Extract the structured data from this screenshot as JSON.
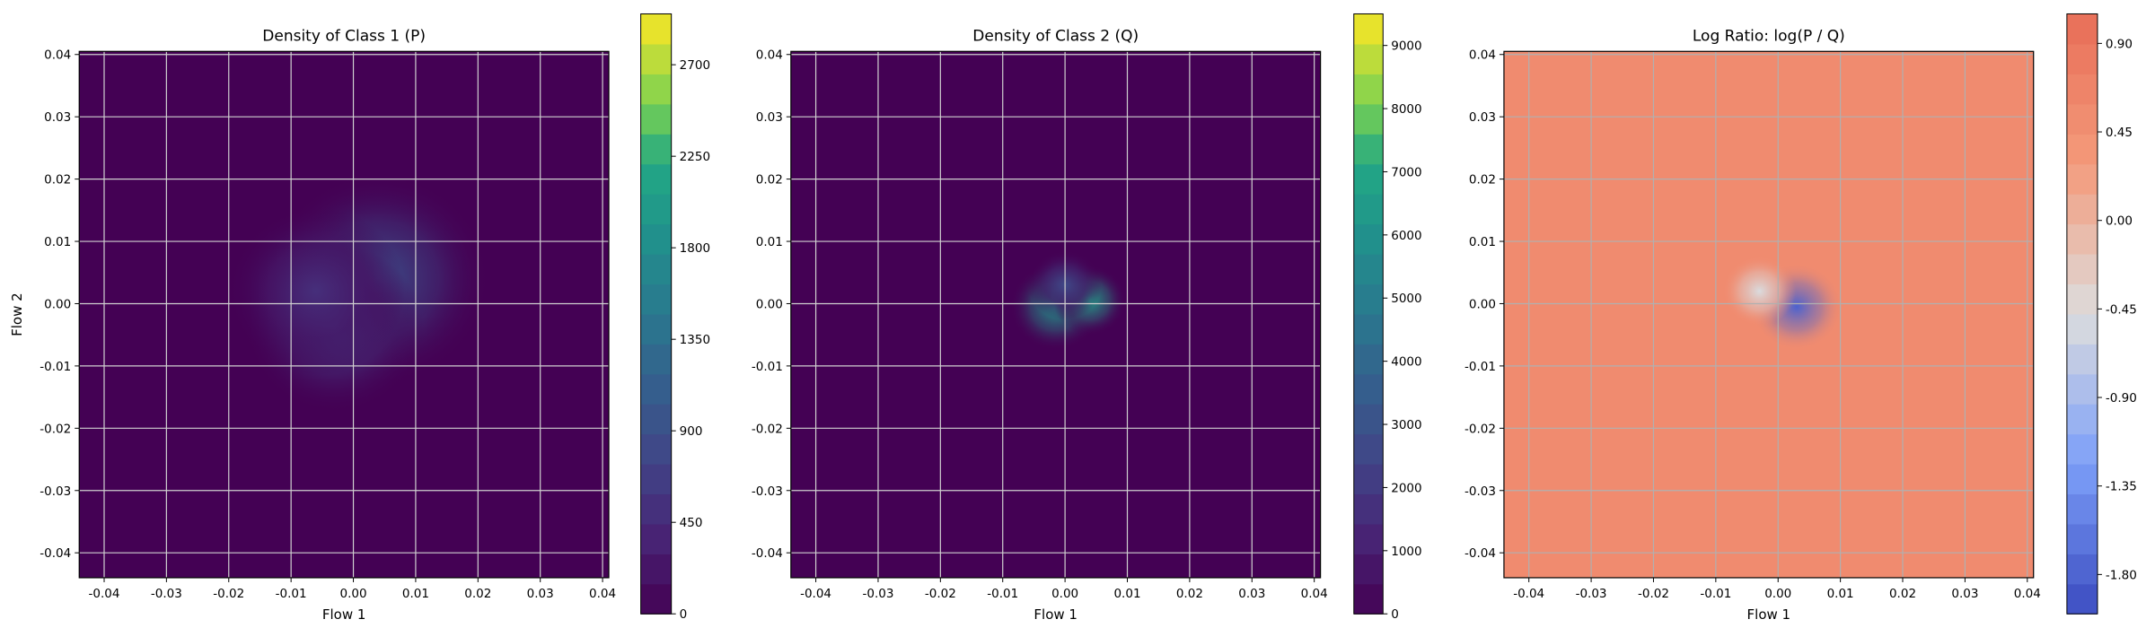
{
  "chart_data": [
    {
      "type": "heatmap",
      "title": "Density of Class 1 (P)",
      "xlabel": "Flow 1",
      "ylabel": "Flow 2",
      "xlim": [
        -0.044,
        0.041
      ],
      "ylim": [
        -0.044,
        0.0405
      ],
      "xticks": [
        "-0.04",
        "-0.03",
        "-0.02",
        "-0.01",
        "0.00",
        "0.01",
        "0.02",
        "0.03",
        "0.04"
      ],
      "yticks": [
        "-0.04",
        "-0.03",
        "-0.02",
        "-0.01",
        "0.00",
        "0.01",
        "0.02",
        "0.03",
        "0.04"
      ],
      "grid": true,
      "colormap": "viridis",
      "colorbar": {
        "min": 0,
        "max": 2950,
        "ticks": [
          "0",
          "450",
          "900",
          "1350",
          "1800",
          "2250",
          "2700"
        ]
      },
      "density_peaks": [
        {
          "x": 0.004,
          "y": 0.004,
          "value": 900
        },
        {
          "x": -0.003,
          "y": -0.004,
          "value": 650
        },
        {
          "x": -0.006,
          "y": 0.002,
          "value": 500
        }
      ]
    },
    {
      "type": "heatmap",
      "title": "Density of Class 2 (Q)",
      "xlabel": "Flow 1",
      "ylabel": "",
      "xlim": [
        -0.044,
        0.041
      ],
      "ylim": [
        -0.044,
        0.0405
      ],
      "xticks": [
        "-0.04",
        "-0.03",
        "-0.02",
        "-0.01",
        "0.00",
        "0.01",
        "0.02",
        "0.03",
        "0.04"
      ],
      "yticks": [
        "-0.04",
        "-0.03",
        "-0.02",
        "-0.01",
        "0.00",
        "0.01",
        "0.02",
        "0.03",
        "0.04"
      ],
      "grid": true,
      "colormap": "viridis",
      "colorbar": {
        "min": 0,
        "max": 9500,
        "ticks": [
          "0",
          "1000",
          "2000",
          "3000",
          "4000",
          "5000",
          "6000",
          "7000",
          "8000",
          "9000"
        ]
      },
      "density_peaks": [
        {
          "x": -0.0015,
          "y": -0.0005,
          "value": 6200
        },
        {
          "x": 0.004,
          "y": 0.0005,
          "value": 6600
        },
        {
          "x": 0.0,
          "y": 0.003,
          "value": 2600
        }
      ]
    },
    {
      "type": "heatmap",
      "title": "Log Ratio: log(P / Q)",
      "xlabel": "Flow 1",
      "ylabel": "",
      "xlim": [
        -0.044,
        0.041
      ],
      "ylim": [
        -0.044,
        0.0405
      ],
      "xticks": [
        "-0.04",
        "-0.03",
        "-0.02",
        "-0.01",
        "0.00",
        "0.01",
        "0.02",
        "0.03",
        "0.04"
      ],
      "yticks": [
        "-0.04",
        "-0.03",
        "-0.02",
        "-0.01",
        "0.00",
        "0.01",
        "0.02",
        "0.03",
        "0.04"
      ],
      "grid": true,
      "colormap": "coolwarm",
      "colorbar": {
        "min": -2.0,
        "max": 1.05,
        "ticks": [
          "-1.80",
          "-1.35",
          "-0.90",
          "-0.45",
          "0.00",
          "0.45",
          "0.90"
        ]
      },
      "background_value": 0.55,
      "density_peaks": [
        {
          "x": 0.003,
          "y": -0.0005,
          "value": -1.8
        },
        {
          "x": -0.003,
          "y": 0.002,
          "value": -0.5
        }
      ]
    }
  ]
}
